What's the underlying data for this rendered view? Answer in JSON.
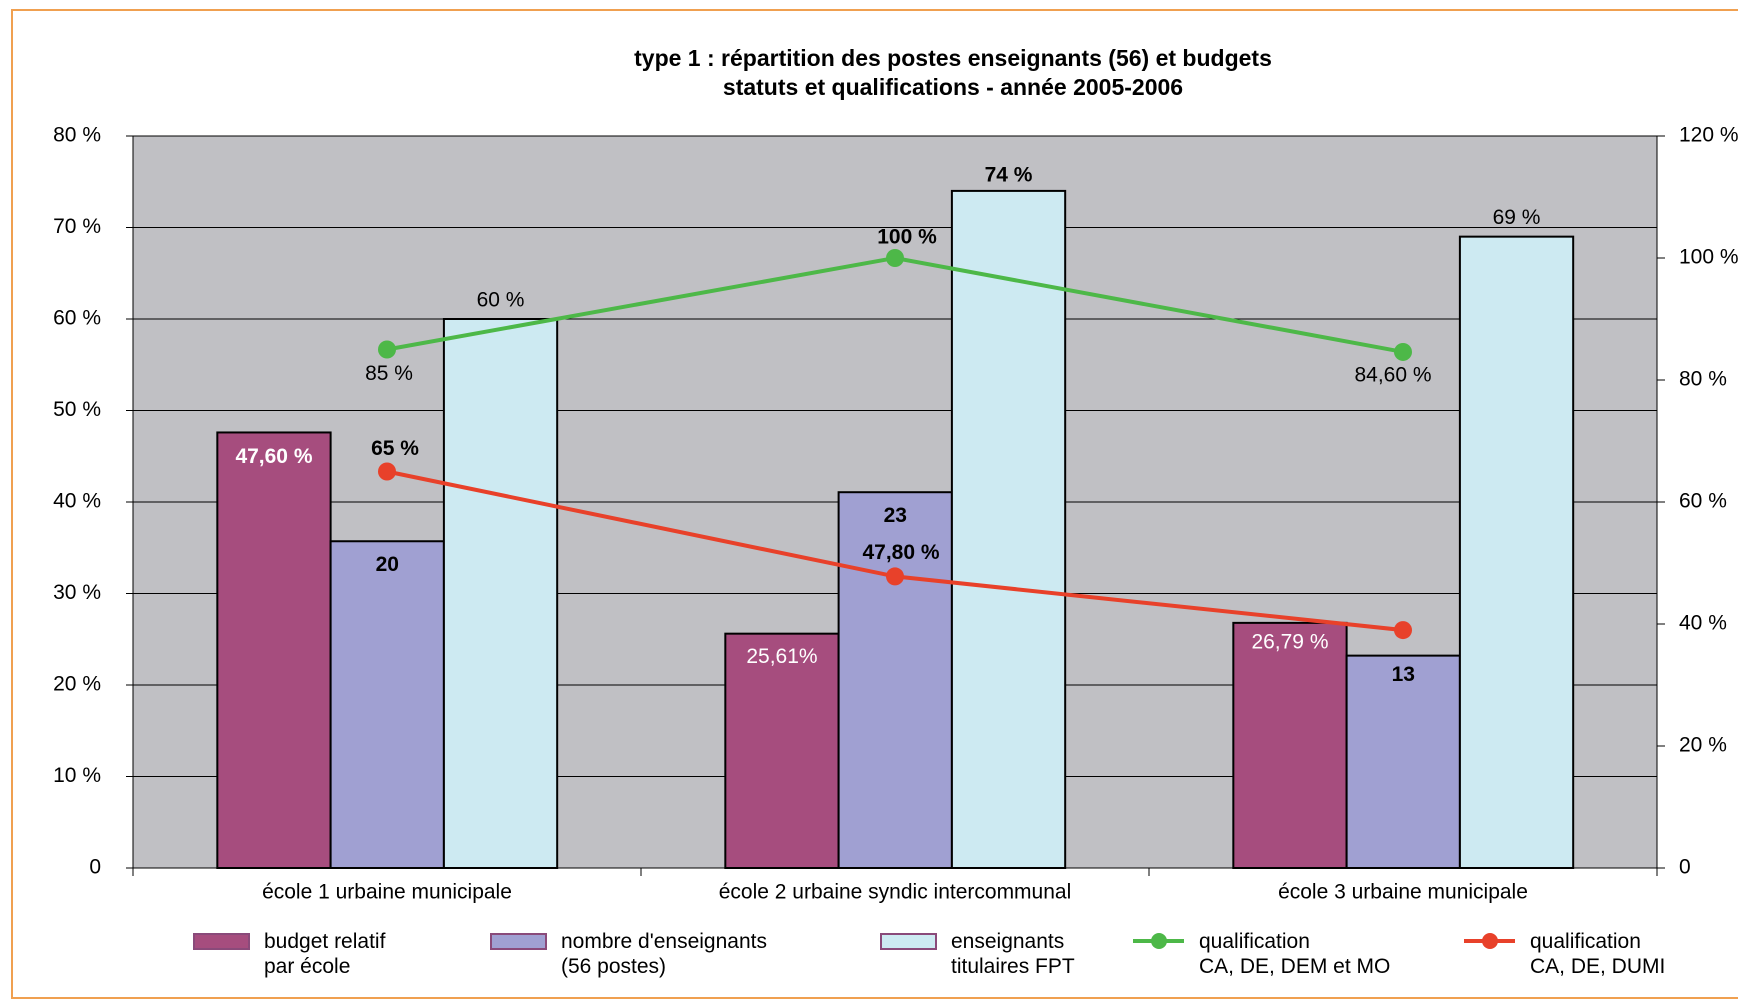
{
  "chart_data": {
    "type": "bar",
    "title": "type 1 : répartition des postes enseignants (56) et budgets\nstatuts et qualifications - année 2005-2006",
    "categories": [
      "école 1 urbaine municipale",
      "école 2 urbaine syndic intercommunal",
      "école 3 urbaine municipale"
    ],
    "series": [
      {
        "name": "budget relatif\npar école",
        "color": "#a64d7e",
        "values": [
          47.6,
          25.61,
          26.79
        ],
        "value_labels": [
          "47,60 %",
          "25,61%",
          "26,79 %"
        ]
      },
      {
        "name": "nombre d'enseignants\n(56 postes)",
        "color": "#a0a0d2",
        "values": [
          35.71,
          41.07,
          23.21
        ],
        "value_labels": [
          "20",
          "23",
          "13"
        ]
      },
      {
        "name": "enseignants\ntitulaires FPT",
        "color": "#cdeaf2",
        "values": [
          60,
          74,
          69
        ],
        "value_labels": [
          "60 %",
          "74 %",
          "69 %"
        ]
      },
      {
        "name": "qualification\nCA, DE, DEM et MO",
        "type": "line",
        "axis": "y2",
        "color": "#4db848",
        "values": [
          85,
          100,
          84.6
        ],
        "value_labels": [
          "85 %",
          "100 %",
          "84,60 %"
        ]
      },
      {
        "name": "qualification\nCA, DE, DUMI",
        "type": "line",
        "axis": "y2",
        "color": "#e8412a",
        "values": [
          65,
          47.8,
          39
        ],
        "value_labels": [
          "65 %",
          "47,80 %",
          null
        ]
      }
    ],
    "ylim": [
      0,
      80
    ],
    "yticks": [
      0,
      {
        "value": 10,
        "label": "10 %"
      },
      {
        "value": 20,
        "label": "20 %"
      },
      {
        "value": 30,
        "label": "30 %"
      },
      {
        "value": 40,
        "label": "40 %"
      },
      {
        "value": 50,
        "label": "50 %"
      },
      {
        "value": 60,
        "label": "60 %"
      },
      {
        "value": 70,
        "label": "70 %"
      },
      {
        "value": 80,
        "label": "80 %"
      }
    ],
    "y2lim": [
      0,
      120
    ],
    "y2ticks": [
      0,
      {
        "value": 20,
        "label": "20 %"
      },
      {
        "value": 40,
        "label": "40 %"
      },
      {
        "value": 60,
        "label": "60 %"
      },
      {
        "value": 80,
        "label": "80 %"
      },
      {
        "value": 100,
        "label": "100 %"
      },
      {
        "value": 120,
        "label": "120 %"
      }
    ],
    "grid": true,
    "plot_background": "#c0c0c4",
    "legend": "bottom"
  }
}
